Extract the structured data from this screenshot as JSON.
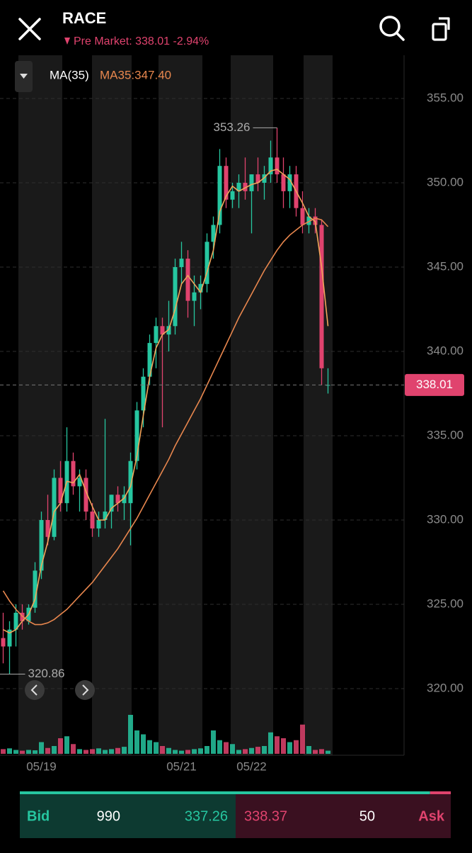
{
  "header": {
    "symbol": "RACE",
    "subtitle": "Pre Market: 338.01 -2.94%"
  },
  "chart_data": {
    "type": "candlestick",
    "indicator": "MA(35)",
    "ma_label": "MA35:347.40",
    "categories": [
      null,
      null,
      null,
      null,
      null,
      null,
      "05/19",
      null,
      null,
      null,
      null,
      null,
      null,
      null,
      null,
      null,
      null,
      null,
      null,
      null,
      null,
      null,
      null,
      null,
      null,
      null,
      null,
      null,
      "05/21",
      null,
      null,
      null,
      null,
      null,
      null,
      null,
      null,
      null,
      null,
      "05/22",
      null,
      null,
      null,
      null,
      null,
      null,
      null,
      null,
      null,
      null,
      null,
      null
    ],
    "open": [
      323.0,
      322.5,
      323.5,
      324.5,
      324.0,
      324.8,
      327.0,
      330.0,
      329.0,
      332.5,
      331.0,
      333.5,
      332.0,
      332.5,
      330.5,
      329.5,
      330.0,
      330.5,
      331.5,
      331.0,
      331.0,
      333.5,
      336.5,
      338.5,
      340.5,
      341.5,
      341.0,
      341.5,
      345.0,
      345.5,
      343.0,
      343.5,
      344.0,
      346.5,
      347.5,
      351.0,
      349.0,
      349.5,
      350.0,
      349.5,
      350.5,
      350.0,
      350.5,
      351.5,
      350.5,
      349.5,
      350.5,
      348.5,
      347.5,
      348.0,
      347.5,
      338.0
    ],
    "high": [
      324.5,
      324.0,
      325.0,
      325.0,
      325.0,
      327.5,
      330.5,
      331.5,
      333.0,
      333.5,
      335.5,
      334.0,
      333.0,
      333.0,
      331.0,
      330.5,
      336.0,
      331.5,
      332.0,
      332.0,
      334.0,
      337.0,
      339.0,
      341.0,
      342.0,
      342.0,
      343.0,
      345.5,
      346.5,
      346.0,
      344.5,
      344.5,
      347.0,
      348.0,
      352.0,
      351.5,
      350.0,
      350.5,
      351.5,
      350.5,
      351.5,
      351.0,
      352.5,
      353.26,
      351.5,
      351.0,
      351.0,
      349.5,
      348.5,
      348.5,
      347.8,
      339.0
    ],
    "low": [
      321.5,
      320.86,
      322.5,
      323.5,
      323.8,
      324.5,
      326.5,
      328.5,
      328.8,
      330.5,
      330.5,
      331.5,
      330.5,
      330.0,
      329.0,
      329.0,
      329.5,
      329.5,
      330.5,
      330.0,
      328.5,
      333.0,
      335.5,
      338.0,
      339.0,
      335.5,
      340.0,
      341.0,
      344.0,
      342.0,
      341.5,
      342.5,
      343.5,
      345.5,
      347.0,
      348.5,
      348.5,
      348.5,
      349.0,
      347.0,
      349.5,
      349.0,
      350.0,
      350.0,
      348.5,
      348.5,
      348.0,
      347.0,
      347.0,
      347.0,
      338.0,
      337.5
    ],
    "close": [
      322.5,
      323.5,
      324.5,
      324.0,
      324.8,
      327.0,
      330.0,
      329.0,
      332.5,
      331.0,
      333.5,
      332.0,
      332.5,
      330.5,
      329.5,
      330.0,
      330.5,
      331.5,
      331.0,
      331.5,
      333.5,
      336.5,
      338.5,
      340.5,
      341.5,
      341.0,
      341.5,
      345.0,
      345.5,
      343.0,
      343.5,
      344.0,
      346.5,
      347.5,
      351.0,
      349.0,
      349.5,
      350.0,
      349.5,
      350.5,
      350.0,
      350.5,
      351.5,
      350.5,
      349.5,
      350.5,
      348.5,
      347.5,
      348.0,
      347.5,
      339.0,
      338.01
    ],
    "volume": [
      12,
      14,
      10,
      8,
      10,
      9,
      30,
      15,
      20,
      40,
      45,
      25,
      12,
      10,
      12,
      14,
      10,
      12,
      15,
      18,
      100,
      60,
      50,
      35,
      30,
      20,
      15,
      10,
      8,
      10,
      12,
      14,
      20,
      60,
      35,
      30,
      25,
      10,
      12,
      15,
      18,
      20,
      55,
      45,
      40,
      30,
      35,
      75,
      20,
      10,
      12,
      8
    ],
    "lines": [
      {
        "color": "#f2a65a",
        "values": [
          323.5,
          323.3,
          323.5,
          324.0,
          324.4,
          325.3,
          327.3,
          328.7,
          330.5,
          331.0,
          332.3,
          332.2,
          332.7,
          331.7,
          330.8,
          330.0,
          330.0,
          330.7,
          331.0,
          331.3,
          332.0,
          333.8,
          336.2,
          338.5,
          340.2,
          341.0,
          341.3,
          342.5,
          344.0,
          344.5,
          344.0,
          343.5,
          344.7,
          346.0,
          348.3,
          349.2,
          349.8,
          349.5,
          349.7,
          349.9,
          350.0,
          350.3,
          350.7,
          350.8,
          350.5,
          350.2,
          349.5,
          348.8,
          348.0,
          347.7,
          345.0,
          341.5
        ]
      },
      {
        "color": "#e8874e",
        "values": [
          325.8,
          325.2,
          324.7,
          324.3,
          324.0,
          323.8,
          323.8,
          323.9,
          324.1,
          324.4,
          324.7,
          325.1,
          325.5,
          325.9,
          326.3,
          326.8,
          327.3,
          327.8,
          328.3,
          328.9,
          329.5,
          330.1,
          330.8,
          331.5,
          332.2,
          332.9,
          333.6,
          334.4,
          335.1,
          335.8,
          336.5,
          337.2,
          338.0,
          338.8,
          339.6,
          340.4,
          341.2,
          342.0,
          342.7,
          343.4,
          344.1,
          344.8,
          345.4,
          346.0,
          346.5,
          346.9,
          347.2,
          347.5,
          347.7,
          347.9,
          347.8,
          347.4
        ]
      }
    ],
    "up_color": "#26c6a0",
    "down_color": "#e0436e",
    "ylim": [
      318.5,
      357.5
    ],
    "yticks": [
      {
        "value": 320,
        "label": "320.00"
      },
      {
        "value": 325,
        "label": "325.00"
      },
      {
        "value": 330,
        "label": "330.00"
      },
      {
        "value": 335,
        "label": "335.00"
      },
      {
        "value": 340,
        "label": "340.00"
      },
      {
        "value": 345,
        "label": "345.00"
      },
      {
        "value": 350,
        "label": "350.00"
      },
      {
        "value": 355,
        "label": "355.00"
      }
    ],
    "grid": true
  },
  "quote": {
    "bid_label": "Bid",
    "bid_size": 990,
    "bid_price": 337.26,
    "ask_price": 338.37,
    "ask_size": 50,
    "ask_label": "Ask"
  }
}
